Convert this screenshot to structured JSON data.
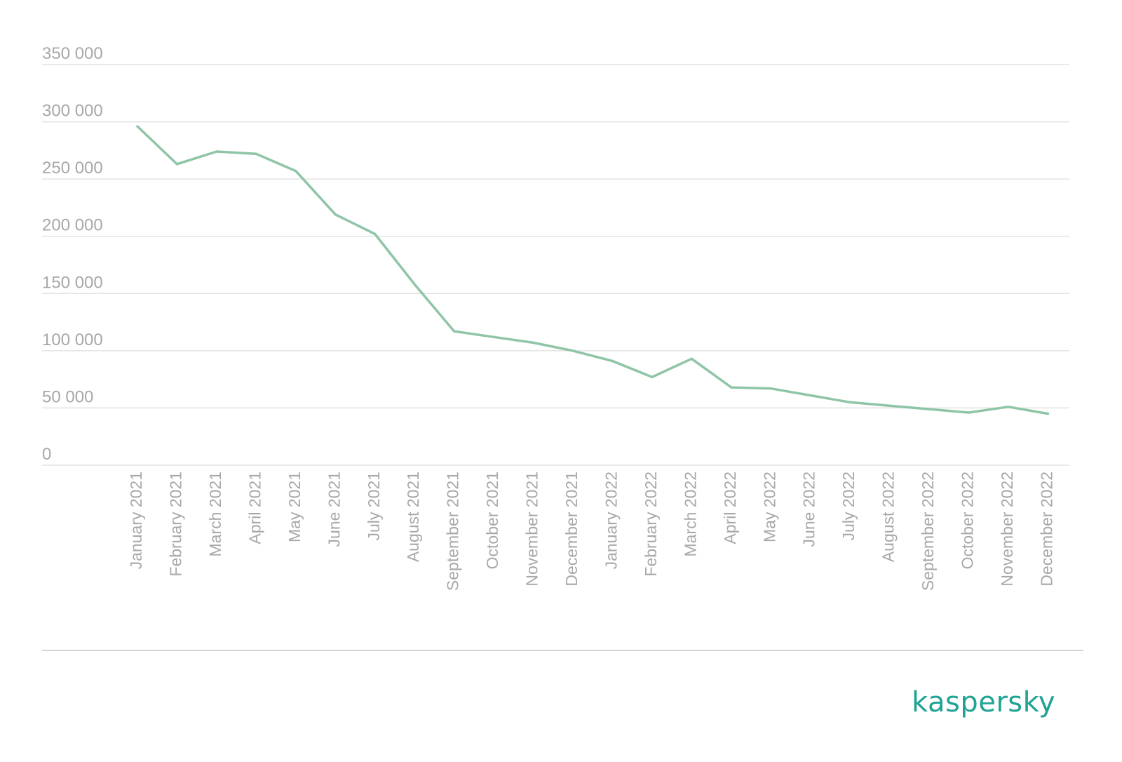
{
  "brand": {
    "name": "kaspersky",
    "color": "#1fa394"
  },
  "chart_data": {
    "type": "line",
    "title": "",
    "xlabel": "",
    "ylabel": "",
    "ylim": [
      0,
      350000
    ],
    "yticks": [
      "0",
      "50 000",
      "100 000",
      "150 000",
      "200 000",
      "250 000",
      "300 000",
      "350 000"
    ],
    "ytick_values": [
      0,
      50000,
      100000,
      150000,
      200000,
      250000,
      300000,
      350000
    ],
    "grid": true,
    "legend": "none",
    "line_color": "#8fc5a6",
    "categories": [
      "January 2021",
      "February 2021",
      "March 2021",
      "April 2021",
      "May 2021",
      "June 2021",
      "July 2021",
      "August 2021",
      "September 2021",
      "October 2021",
      "November 2021",
      "December 2021",
      "January 2022",
      "February 2022",
      "March 2022",
      "April 2022",
      "May 2022",
      "June 2022",
      "July 2022",
      "August 2022",
      "September 2022",
      "October 2022",
      "November 2022",
      "December 2022"
    ],
    "series": [
      {
        "values": [
          296000,
          263000,
          274000,
          272000,
          257000,
          219000,
          202000,
          158000,
          117000,
          112000,
          107000,
          100000,
          91000,
          77000,
          93000,
          68000,
          67000,
          61000,
          55000,
          52000,
          49000,
          46000,
          51000,
          45000
        ]
      }
    ]
  }
}
